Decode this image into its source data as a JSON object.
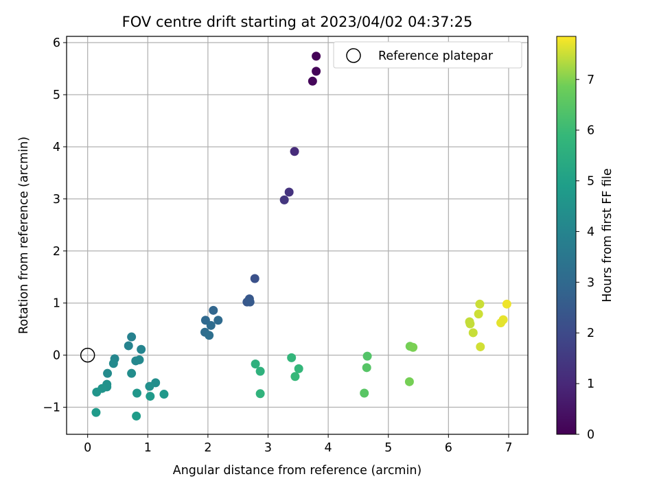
{
  "chart_data": {
    "type": "scatter",
    "title": "FOV centre drift starting at 2023/04/02 04:37:25",
    "xlabel": "Angular distance from reference (arcmin)",
    "ylabel": "Rotation from reference (arcmin)",
    "xlim": [
      -0.35,
      7.32
    ],
    "ylim": [
      -1.52,
      6.12
    ],
    "xticks": [
      0,
      1,
      2,
      3,
      4,
      5,
      6,
      7
    ],
    "yticks": [
      -1,
      0,
      1,
      2,
      3,
      4,
      5,
      6
    ],
    "xtick_labels": [
      "0",
      "1",
      "2",
      "3",
      "4",
      "5",
      "6",
      "7"
    ],
    "ytick_labels": [
      "−1",
      "0",
      "1",
      "2",
      "3",
      "4",
      "5",
      "6"
    ],
    "grid": true,
    "legend": {
      "placement": "top-right",
      "label": "Reference platepar"
    },
    "reference_point": {
      "x": 0,
      "y": 0
    },
    "colorbar": {
      "label": "Hours from first FF file",
      "colormap": "viridis",
      "range": [
        0,
        7.85
      ],
      "ticks": [
        0,
        1,
        2,
        3,
        4,
        5,
        6,
        7
      ],
      "tick_labels": [
        "0",
        "1",
        "2",
        "3",
        "4",
        "5",
        "6",
        "7"
      ]
    },
    "points": [
      {
        "x": 3.8,
        "y": 5.74,
        "hours": 0.05
      },
      {
        "x": 3.8,
        "y": 5.45,
        "hours": 0.1
      },
      {
        "x": 3.74,
        "y": 5.26,
        "hours": 0.15
      },
      {
        "x": 3.44,
        "y": 3.91,
        "hours": 1.1
      },
      {
        "x": 3.35,
        "y": 3.13,
        "hours": 1.3
      },
      {
        "x": 3.27,
        "y": 2.98,
        "hours": 1.4
      },
      {
        "x": 2.78,
        "y": 1.47,
        "hours": 2.2
      },
      {
        "x": 2.69,
        "y": 1.08,
        "hours": 2.4
      },
      {
        "x": 2.65,
        "y": 1.02,
        "hours": 2.45
      },
      {
        "x": 2.7,
        "y": 1.02,
        "hours": 2.5
      },
      {
        "x": 2.09,
        "y": 0.86,
        "hours": 2.9
      },
      {
        "x": 1.96,
        "y": 0.67,
        "hours": 3.0
      },
      {
        "x": 2.17,
        "y": 0.67,
        "hours": 3.05
      },
      {
        "x": 2.05,
        "y": 0.57,
        "hours": 3.1
      },
      {
        "x": 1.95,
        "y": 0.44,
        "hours": 3.15
      },
      {
        "x": 2.02,
        "y": 0.38,
        "hours": 3.2
      },
      {
        "x": 0.73,
        "y": 0.35,
        "hours": 3.9
      },
      {
        "x": 0.68,
        "y": 0.18,
        "hours": 3.95
      },
      {
        "x": 0.89,
        "y": 0.11,
        "hours": 4.0
      },
      {
        "x": 0.45,
        "y": -0.07,
        "hours": 4.05
      },
      {
        "x": 0.8,
        "y": -0.11,
        "hours": 4.1
      },
      {
        "x": 0.86,
        "y": -0.09,
        "hours": 4.15
      },
      {
        "x": 0.43,
        "y": -0.16,
        "hours": 4.2
      },
      {
        "x": 0.33,
        "y": -0.35,
        "hours": 4.25
      },
      {
        "x": 0.73,
        "y": -0.35,
        "hours": 4.3
      },
      {
        "x": 1.13,
        "y": -0.53,
        "hours": 4.35
      },
      {
        "x": 1.03,
        "y": -0.6,
        "hours": 4.4
      },
      {
        "x": 0.32,
        "y": -0.56,
        "hours": 4.45
      },
      {
        "x": 0.32,
        "y": -0.61,
        "hours": 4.5
      },
      {
        "x": 0.24,
        "y": -0.64,
        "hours": 4.55
      },
      {
        "x": 0.15,
        "y": -0.71,
        "hours": 4.6
      },
      {
        "x": 0.82,
        "y": -0.73,
        "hours": 4.65
      },
      {
        "x": 1.27,
        "y": -0.75,
        "hours": 4.7
      },
      {
        "x": 1.04,
        "y": -0.79,
        "hours": 4.75
      },
      {
        "x": 0.14,
        "y": -1.1,
        "hours": 4.8
      },
      {
        "x": 0.81,
        "y": -1.17,
        "hours": 4.85
      },
      {
        "x": 2.79,
        "y": -0.17,
        "hours": 5.6
      },
      {
        "x": 2.87,
        "y": -0.31,
        "hours": 5.65
      },
      {
        "x": 2.87,
        "y": -0.74,
        "hours": 5.7
      },
      {
        "x": 3.39,
        "y": -0.05,
        "hours": 5.8
      },
      {
        "x": 3.51,
        "y": -0.26,
        "hours": 5.85
      },
      {
        "x": 3.45,
        "y": -0.41,
        "hours": 5.9
      },
      {
        "x": 4.65,
        "y": -0.02,
        "hours": 6.4
      },
      {
        "x": 4.64,
        "y": -0.24,
        "hours": 6.45
      },
      {
        "x": 4.6,
        "y": -0.73,
        "hours": 6.5
      },
      {
        "x": 5.36,
        "y": 0.17,
        "hours": 6.9
      },
      {
        "x": 5.41,
        "y": 0.15,
        "hours": 6.95
      },
      {
        "x": 5.35,
        "y": -0.51,
        "hours": 6.92
      },
      {
        "x": 6.52,
        "y": 0.98,
        "hours": 7.5
      },
      {
        "x": 6.97,
        "y": 0.98,
        "hours": 7.75
      },
      {
        "x": 6.5,
        "y": 0.79,
        "hours": 7.52
      },
      {
        "x": 6.91,
        "y": 0.68,
        "hours": 7.7
      },
      {
        "x": 6.35,
        "y": 0.64,
        "hours": 7.45
      },
      {
        "x": 6.87,
        "y": 0.62,
        "hours": 7.68
      },
      {
        "x": 6.36,
        "y": 0.6,
        "hours": 7.46
      },
      {
        "x": 6.41,
        "y": 0.43,
        "hours": 7.48
      },
      {
        "x": 6.53,
        "y": 0.16,
        "hours": 7.55
      }
    ]
  }
}
